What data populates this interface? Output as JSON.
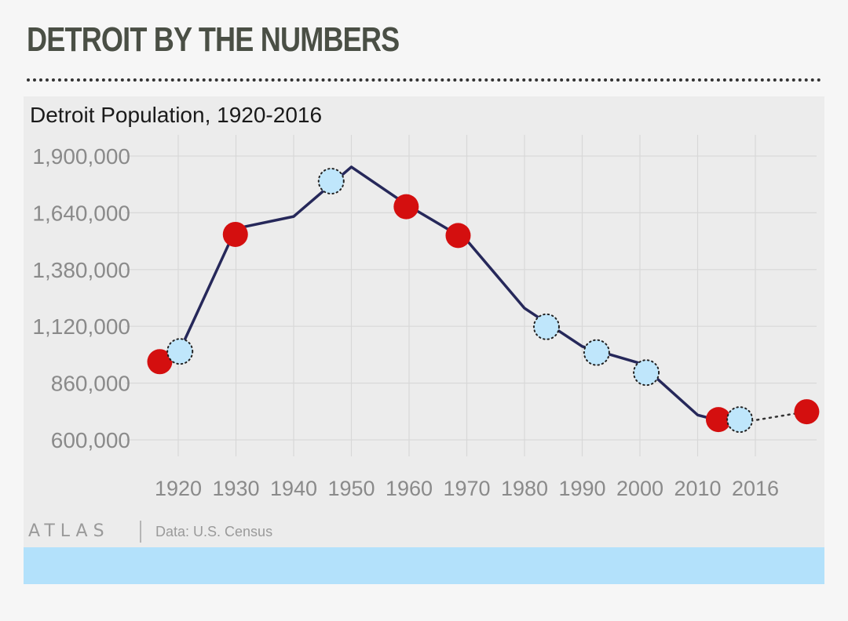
{
  "header": {
    "title": "DETROIT BY THE NUMBERS"
  },
  "footer": {
    "brand": "ATLAS",
    "source": "Data: U.S. Census"
  },
  "colors": {
    "line": "#26285a",
    "red_marker": "#d40f0f",
    "blue_marker": "#bfe6fb",
    "bottom_bar": "#b3e1fb"
  },
  "chart_data": {
    "type": "line",
    "title": "Detroit Population, 1920-2016",
    "xlabel": "",
    "ylabel": "",
    "x_ticks": [
      "1920",
      "1930",
      "1940",
      "1950",
      "1960",
      "1970",
      "1980",
      "1990",
      "2000",
      "2010",
      "2016"
    ],
    "y_ticks": [
      "1,900,000",
      "1,640,000",
      "1,380,000",
      "1,120,000",
      "860,000",
      "600,000"
    ],
    "ylim": [
      600000,
      1900000
    ],
    "grid": true,
    "series": [
      {
        "values": [
          {
            "x": 1920,
            "y": 994000
          },
          {
            "x": 1930,
            "y": 1568000
          },
          {
            "x": 1940,
            "y": 1623000
          },
          {
            "x": 1950,
            "y": 1850000
          },
          {
            "x": 1960,
            "y": 1670000
          },
          {
            "x": 1970,
            "y": 1514000
          },
          {
            "x": 1980,
            "y": 1203000
          },
          {
            "x": 1990,
            "y": 1028000
          },
          {
            "x": 2000,
            "y": 951000
          },
          {
            "x": 2010,
            "y": 714000
          },
          {
            "x": 2016,
            "y": 673000
          }
        ]
      }
    ],
    "markers": [
      {
        "x": 1916.8,
        "y": 958000,
        "style": "red"
      },
      {
        "x": 1920.3,
        "y": 1005000,
        "style": "blue"
      },
      {
        "x": 1929.9,
        "y": 1541000,
        "style": "red"
      },
      {
        "x": 1946.5,
        "y": 1785000,
        "style": "blue"
      },
      {
        "x": 1959.5,
        "y": 1668000,
        "style": "red"
      },
      {
        "x": 1968.5,
        "y": 1536000,
        "style": "red"
      },
      {
        "x": 1983.8,
        "y": 1118000,
        "style": "blue"
      },
      {
        "x": 1992.5,
        "y": 1000000,
        "style": "blue"
      },
      {
        "x": 2001.1,
        "y": 908000,
        "style": "blue"
      },
      {
        "x": 2013.6,
        "y": 693000,
        "style": "red"
      },
      {
        "x": 2017.3,
        "y": 693000,
        "style": "blue"
      },
      {
        "x": 2028.9,
        "y": 729000,
        "style": "red"
      }
    ]
  }
}
